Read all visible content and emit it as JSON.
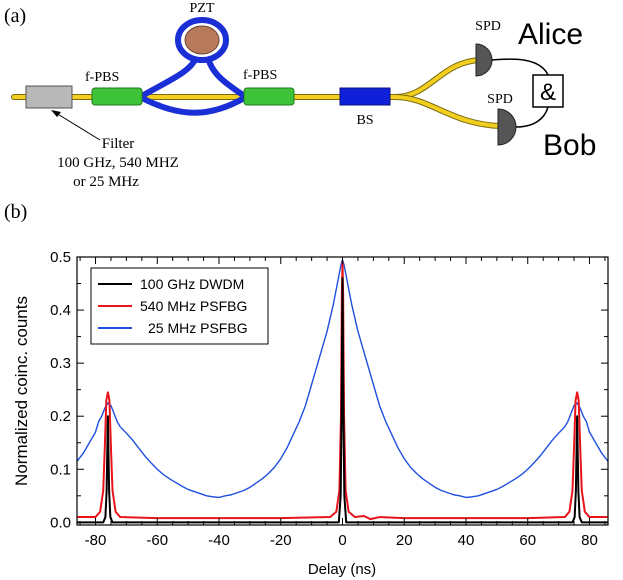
{
  "panel_a": {
    "label": "(a)",
    "pzt": "PZT",
    "fpbs_left": "f-PBS",
    "fpbs_right": "f-PBS",
    "bs": "BS",
    "spd_top": "SPD",
    "spd_bottom": "SPD",
    "alice": "Alice",
    "bob": "Bob",
    "coincidence": "&",
    "filter_line1": "Filter",
    "filter_line2": "100 GHz, 540 MHZ",
    "filter_line3": "or 25 MHz",
    "colors": {
      "fiber": "#f2cf1e",
      "loop": "#1a2fd6",
      "pbs": "#3ec23a",
      "bs": "#1020d8",
      "pzt": "#b87a5a",
      "filter": "#b8b8b8",
      "spd": "#555555"
    }
  },
  "panel_b": {
    "label": "(b)"
  },
  "chart_data": {
    "type": "line",
    "title": "",
    "xlabel": "Delay (ns)",
    "ylabel": "Normalized coinc. counts",
    "xlim": [
      -86,
      86
    ],
    "ylim": [
      -0.005,
      0.5
    ],
    "xticks": [
      -80,
      -60,
      -40,
      -20,
      0,
      20,
      40,
      60,
      80
    ],
    "yticks": [
      0.0,
      0.1,
      0.2,
      0.3,
      0.4,
      0.5
    ],
    "ytick_labels": [
      "0.0",
      "0.1",
      "0.2",
      "0.3",
      "0.4",
      "0.5"
    ],
    "legend_position": "top-left",
    "series": [
      {
        "name": "100 GHz DWDM",
        "color": "#000000",
        "x": [
          -86,
          -77.5,
          -76.8,
          -76.4,
          -76,
          -75.6,
          -75.2,
          -74.5,
          -1.2,
          -0.6,
          -0.3,
          0,
          0.3,
          0.6,
          1.2,
          74.5,
          75.2,
          75.6,
          76,
          76.4,
          76.8,
          77.5,
          86
        ],
        "y": [
          0,
          0,
          0.01,
          0.06,
          0.2,
          0.06,
          0.01,
          0,
          0,
          0.05,
          0.2,
          0.46,
          0.2,
          0.05,
          0,
          0,
          0.01,
          0.06,
          0.2,
          0.06,
          0.01,
          0,
          0
        ]
      },
      {
        "name": "540 MHz PSFBG",
        "color": "#e8141a",
        "x": [
          -86,
          -80,
          -78.5,
          -77.5,
          -77,
          -76.5,
          -76,
          -75.5,
          -75,
          -74.5,
          -73.5,
          -72,
          -60,
          -20,
          -4,
          -2,
          -1,
          -0.5,
          -0.2,
          0,
          0.2,
          0.5,
          1,
          2,
          4,
          7,
          9,
          12,
          20,
          60,
          72,
          73.5,
          74.5,
          75,
          75.5,
          76,
          76.5,
          77,
          77.5,
          78.5,
          80,
          86
        ],
        "y": [
          0.01,
          0.01,
          0.02,
          0.06,
          0.14,
          0.23,
          0.245,
          0.23,
          0.14,
          0.06,
          0.02,
          0.01,
          0.008,
          0.008,
          0.01,
          0.02,
          0.06,
          0.2,
          0.43,
          0.49,
          0.43,
          0.2,
          0.06,
          0.02,
          0.01,
          0.012,
          0.006,
          0.01,
          0.008,
          0.008,
          0.01,
          0.02,
          0.06,
          0.14,
          0.23,
          0.245,
          0.23,
          0.14,
          0.06,
          0.02,
          0.01,
          0.01
        ]
      },
      {
        "name": "25 MHz PSFBG",
        "color": "#1f4fe0",
        "x": [
          -86,
          -84,
          -82,
          -80,
          -79,
          -78,
          -77,
          -76,
          -75,
          -74,
          -73,
          -72,
          -70,
          -68,
          -66,
          -64,
          -62,
          -60,
          -58,
          -56,
          -54,
          -52,
          -50,
          -48,
          -46,
          -44,
          -42,
          -40,
          -38,
          -36,
          -34,
          -32,
          -30,
          -28,
          -26,
          -24,
          -22,
          -20,
          -18,
          -16,
          -14,
          -12,
          -10,
          -8,
          -6,
          -5,
          -4,
          -3,
          -2,
          -1.5,
          -1,
          -0.5,
          0,
          0.5,
          1,
          1.5,
          2,
          3,
          4,
          5,
          6,
          8,
          10,
          12,
          14,
          16,
          18,
          20,
          22,
          24,
          26,
          28,
          30,
          32,
          34,
          36,
          38,
          40,
          42,
          44,
          46,
          48,
          50,
          52,
          54,
          56,
          58,
          60,
          62,
          64,
          66,
          68,
          70,
          72,
          73,
          74,
          75,
          76,
          77,
          78,
          79,
          80,
          82,
          84,
          86
        ],
        "y": [
          0.115,
          0.13,
          0.15,
          0.17,
          0.19,
          0.2,
          0.215,
          0.225,
          0.22,
          0.205,
          0.19,
          0.18,
          0.168,
          0.155,
          0.14,
          0.125,
          0.112,
          0.1,
          0.09,
          0.082,
          0.075,
          0.068,
          0.062,
          0.058,
          0.054,
          0.05,
          0.048,
          0.047,
          0.05,
          0.052,
          0.056,
          0.06,
          0.066,
          0.074,
          0.082,
          0.092,
          0.104,
          0.12,
          0.14,
          0.165,
          0.19,
          0.22,
          0.26,
          0.3,
          0.34,
          0.36,
          0.385,
          0.41,
          0.44,
          0.455,
          0.47,
          0.485,
          0.495,
          0.485,
          0.47,
          0.455,
          0.44,
          0.41,
          0.385,
          0.36,
          0.34,
          0.3,
          0.26,
          0.22,
          0.19,
          0.165,
          0.14,
          0.12,
          0.104,
          0.092,
          0.082,
          0.074,
          0.066,
          0.06,
          0.056,
          0.052,
          0.05,
          0.047,
          0.048,
          0.05,
          0.054,
          0.058,
          0.062,
          0.068,
          0.075,
          0.082,
          0.09,
          0.1,
          0.112,
          0.125,
          0.14,
          0.155,
          0.168,
          0.18,
          0.19,
          0.205,
          0.22,
          0.225,
          0.215,
          0.2,
          0.19,
          0.17,
          0.15,
          0.13,
          0.115
        ]
      }
    ]
  }
}
